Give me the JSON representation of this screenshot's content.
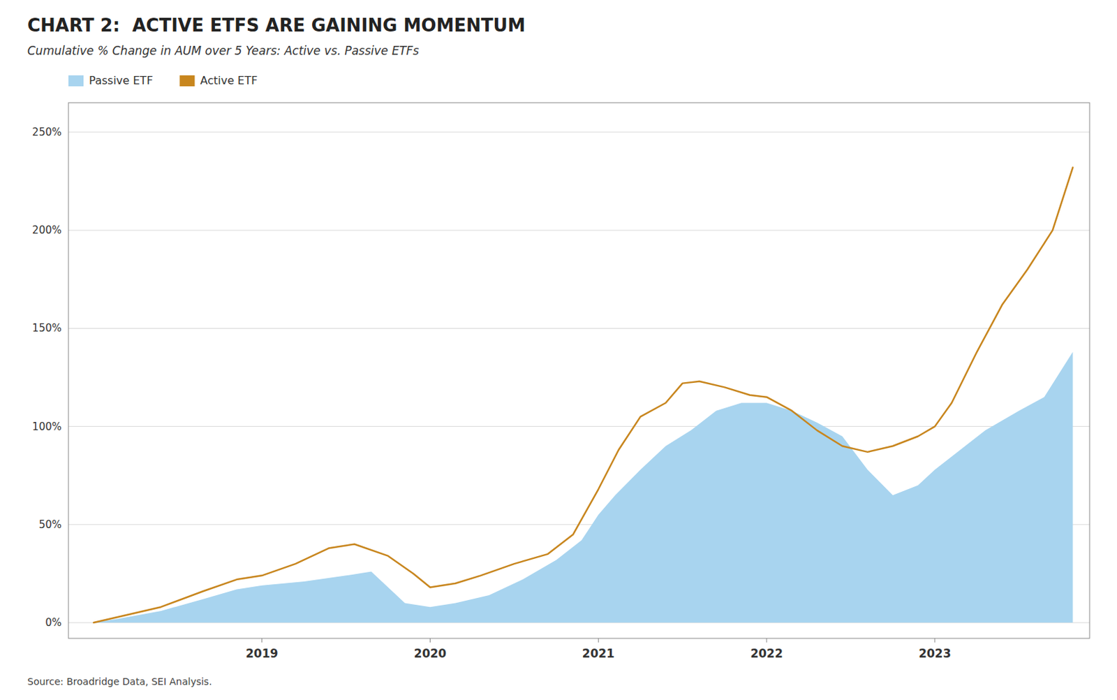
{
  "chart_data": {
    "type": "line",
    "title": "CHART 2:  ACTIVE ETFS ARE GAINING MOMENTUM",
    "subtitle": "Cumulative % Change in AUM over 5 Years: Active vs. Passive ETFs",
    "source": "Source: Broadridge Data, SEI Analysis.",
    "xlim": [
      2017.85,
      2023.92
    ],
    "xticks": [
      2019,
      2020,
      2021,
      2022,
      2023
    ],
    "ylim": [
      -8,
      265
    ],
    "yticks": [
      {
        "value": 0,
        "label": "0%"
      },
      {
        "value": 50,
        "label": "50%"
      },
      {
        "value": 100,
        "label": "100%"
      },
      {
        "value": 150,
        "label": "150%"
      },
      {
        "value": 200,
        "label": "200%"
      },
      {
        "value": 250,
        "label": "250%"
      }
    ],
    "grid": true,
    "legend": "upper left",
    "series": [
      {
        "name": "Passive ETF",
        "type": "area",
        "color": "#a8d4ef",
        "x": [
          2018.0,
          2018.15,
          2018.4,
          2018.65,
          2018.85,
          2019.0,
          2019.25,
          2019.5,
          2019.65,
          2019.85,
          2020.0,
          2020.15,
          2020.35,
          2020.55,
          2020.75,
          2020.9,
          2021.0,
          2021.1,
          2021.25,
          2021.4,
          2021.55,
          2021.7,
          2021.85,
          2022.0,
          2022.15,
          2022.3,
          2022.45,
          2022.6,
          2022.75,
          2022.9,
          2023.0,
          2023.15,
          2023.3,
          2023.5,
          2023.65,
          2023.82
        ],
        "values": [
          0,
          2,
          6,
          12,
          17,
          19,
          21,
          24,
          26,
          10,
          8,
          10,
          14,
          22,
          32,
          42,
          55,
          65,
          78,
          90,
          98,
          108,
          112,
          112,
          108,
          102,
          95,
          78,
          65,
          70,
          78,
          88,
          98,
          108,
          115,
          138
        ]
      },
      {
        "name": "Active ETF",
        "type": "line",
        "color": "#c8861e",
        "x": [
          2018.0,
          2018.15,
          2018.4,
          2018.65,
          2018.85,
          2019.0,
          2019.2,
          2019.4,
          2019.55,
          2019.75,
          2019.9,
          2020.0,
          2020.15,
          2020.3,
          2020.5,
          2020.7,
          2020.85,
          2021.0,
          2021.12,
          2021.25,
          2021.4,
          2021.5,
          2021.6,
          2021.75,
          2021.9,
          2022.0,
          2022.15,
          2022.3,
          2022.45,
          2022.6,
          2022.75,
          2022.9,
          2023.0,
          2023.1,
          2023.25,
          2023.4,
          2023.55,
          2023.7,
          2023.82
        ],
        "values": [
          0,
          3,
          8,
          16,
          22,
          24,
          30,
          38,
          40,
          34,
          25,
          18,
          20,
          24,
          30,
          35,
          45,
          68,
          88,
          105,
          112,
          122,
          123,
          120,
          116,
          115,
          108,
          98,
          90,
          87,
          90,
          95,
          100,
          112,
          138,
          162,
          180,
          200,
          232
        ]
      }
    ]
  }
}
